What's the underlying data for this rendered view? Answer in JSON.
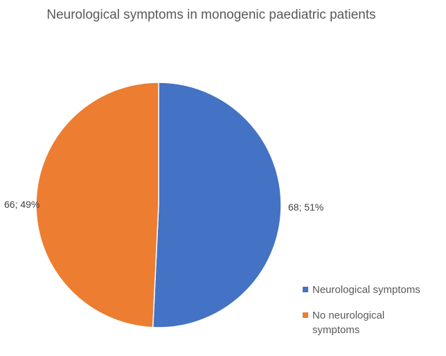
{
  "chart_data": {
    "type": "pie",
    "title": "Neurological symptoms in monogenic paediatric patients",
    "slices": [
      {
        "name": "Neurological symptoms",
        "value": 68,
        "percent": "51%",
        "label": "68; 51%",
        "color": "#4472C4"
      },
      {
        "name": "No neurological symptoms",
        "value": 66,
        "percent": "49%",
        "label": "66; 49%",
        "color": "#ED7D31"
      }
    ],
    "legend_position": "bottom-right",
    "start_angle": "12 o'clock",
    "direction": "clockwise"
  }
}
